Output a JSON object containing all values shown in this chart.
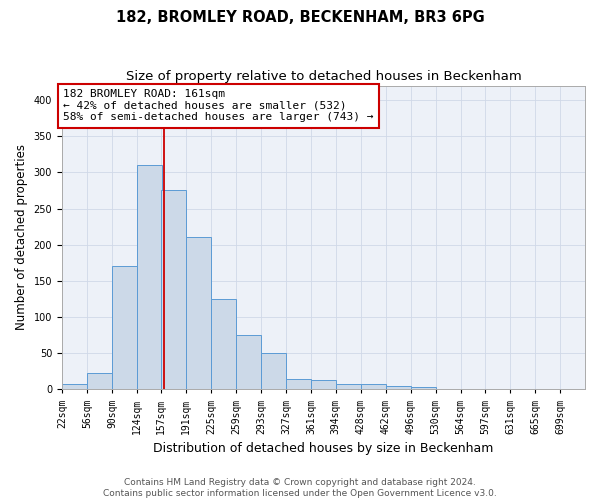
{
  "title1": "182, BROMLEY ROAD, BECKENHAM, BR3 6PG",
  "title2": "Size of property relative to detached houses in Beckenham",
  "xlabel": "Distribution of detached houses by size in Beckenham",
  "ylabel": "Number of detached properties",
  "bin_edges": [
    22,
    56,
    90,
    124,
    157,
    191,
    225,
    259,
    293,
    327,
    361,
    394,
    428,
    462,
    496,
    530,
    564,
    597,
    631,
    665,
    699
  ],
  "bar_heights": [
    7,
    22,
    170,
    310,
    275,
    210,
    125,
    75,
    50,
    15,
    13,
    7,
    7,
    5,
    3,
    1,
    1,
    1,
    1,
    1
  ],
  "bar_facecolor": "#ccd9e8",
  "bar_edgecolor": "#5b9bd5",
  "grid_color": "#d0d8e8",
  "vline_x": 161,
  "vline_color": "#cc0000",
  "annotation_text": "182 BROMLEY ROAD: 161sqm\n← 42% of detached houses are smaller (532)\n58% of semi-detached houses are larger (743) →",
  "annotation_box_edgecolor": "#cc0000",
  "annotation_fontsize": 8,
  "ylim": [
    0,
    420
  ],
  "yticks": [
    0,
    50,
    100,
    150,
    200,
    250,
    300,
    350,
    400
  ],
  "footer1": "Contains HM Land Registry data © Crown copyright and database right 2024.",
  "footer2": "Contains public sector information licensed under the Open Government Licence v3.0.",
  "title_fontsize": 10.5,
  "subtitle_fontsize": 9.5,
  "ylabel_fontsize": 8.5,
  "xlabel_fontsize": 9,
  "tick_fontsize": 7,
  "footer_fontsize": 6.5
}
